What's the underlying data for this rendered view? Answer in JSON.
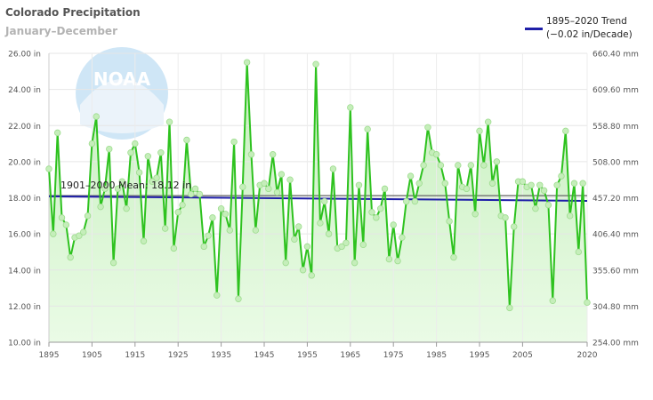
{
  "header": {
    "title": "Colorado Precipitation",
    "subtitle": "January–December"
  },
  "legend": {
    "line1": "1895–2020 Trend",
    "line2": "(−0.02 in/Decade)"
  },
  "watermark": {
    "text": "NOAA",
    "icon": "noaa-logo"
  },
  "colors": {
    "series": "#2ec21f",
    "marker": "#c5eeba",
    "fill_top": "#c6efbd",
    "fill_bottom": "#eafbe6",
    "trend": "#1f1fa8",
    "mean": "#7a7a7a"
  },
  "chart_data": {
    "type": "line",
    "x": [
      1895,
      1896,
      1897,
      1898,
      1899,
      1900,
      1901,
      1902,
      1903,
      1904,
      1905,
      1906,
      1907,
      1908,
      1909,
      1910,
      1911,
      1912,
      1913,
      1914,
      1915,
      1916,
      1917,
      1918,
      1919,
      1920,
      1921,
      1922,
      1923,
      1924,
      1925,
      1926,
      1927,
      1928,
      1929,
      1930,
      1931,
      1932,
      1933,
      1934,
      1935,
      1936,
      1937,
      1938,
      1939,
      1940,
      1941,
      1942,
      1943,
      1944,
      1945,
      1946,
      1947,
      1948,
      1949,
      1950,
      1951,
      1952,
      1953,
      1954,
      1955,
      1956,
      1957,
      1958,
      1959,
      1960,
      1961,
      1962,
      1963,
      1964,
      1965,
      1966,
      1967,
      1968,
      1969,
      1970,
      1971,
      1972,
      1973,
      1974,
      1975,
      1976,
      1977,
      1978,
      1979,
      1980,
      1981,
      1982,
      1983,
      1984,
      1985,
      1986,
      1987,
      1988,
      1989,
      1990,
      1991,
      1992,
      1993,
      1994,
      1995,
      1996,
      1997,
      1998,
      1999,
      2000,
      2001,
      2002,
      2003,
      2004,
      2005,
      2006,
      2007,
      2008,
      2009,
      2010,
      2011,
      2012,
      2013,
      2014,
      2015,
      2016,
      2017,
      2018,
      2019,
      2020
    ],
    "y": [
      19.6,
      16.0,
      21.6,
      16.9,
      16.5,
      14.7,
      15.8,
      15.9,
      16.1,
      17.0,
      21.0,
      22.5,
      17.5,
      18.5,
      20.7,
      14.4,
      18.5,
      18.9,
      17.4,
      20.5,
      21.0,
      19.4,
      15.6,
      20.3,
      18.9,
      19.1,
      20.5,
      16.3,
      22.2,
      15.2,
      17.2,
      17.6,
      21.2,
      18.2,
      18.5,
      18.2,
      15.3,
      15.9,
      16.9,
      12.6,
      17.4,
      17.1,
      16.2,
      21.1,
      12.4,
      18.6,
      25.5,
      20.4,
      16.2,
      18.7,
      18.8,
      18.5,
      20.4,
      18.3,
      19.3,
      14.4,
      19.0,
      15.7,
      16.4,
      14.0,
      15.3,
      13.7,
      25.4,
      16.6,
      17.8,
      16.0,
      19.6,
      15.2,
      15.3,
      15.5,
      23.0,
      14.4,
      18.7,
      15.4,
      21.8,
      17.2,
      16.9,
      17.4,
      18.5,
      14.6,
      16.5,
      14.5,
      15.8,
      17.8,
      19.2,
      17.8,
      18.8,
      19.8,
      21.9,
      20.5,
      20.4,
      19.8,
      18.8,
      16.7,
      14.7,
      19.8,
      18.6,
      18.5,
      19.8,
      17.1,
      21.7,
      19.8,
      22.2,
      18.8,
      20.0,
      17.0,
      16.9,
      11.9,
      16.4,
      18.9,
      18.9,
      18.6,
      18.7,
      17.4,
      18.7,
      18.4,
      17.6,
      12.3,
      18.7,
      19.2,
      21.7,
      17.0,
      18.8,
      15.0,
      18.8,
      12.2
    ],
    "mean_value": 18.12,
    "mean_label": "1901–2000 Mean: 18.12 in",
    "trend": {
      "start_year": 1895,
      "start_value": 18.08,
      "end_year": 2020,
      "end_value": 17.83
    },
    "xticks": [
      1895,
      1905,
      1915,
      1925,
      1935,
      1945,
      1955,
      1965,
      1975,
      1985,
      1995,
      2005,
      2020
    ],
    "ylim": [
      10,
      26
    ],
    "yticks_left": [
      "10.00 in",
      "12.00 in",
      "14.00 in",
      "16.00 in",
      "18.00 in",
      "20.00 in",
      "22.00 in",
      "24.00 in",
      "26.00 in"
    ],
    "yticks_right": [
      "254.00 mm",
      "304.80 mm",
      "355.60 mm",
      "406.40 mm",
      "457.20 mm",
      "508.00 mm",
      "558.80 mm",
      "609.60 mm",
      "660.40 mm"
    ],
    "xlim": [
      1895,
      2020
    ],
    "grid": true
  }
}
